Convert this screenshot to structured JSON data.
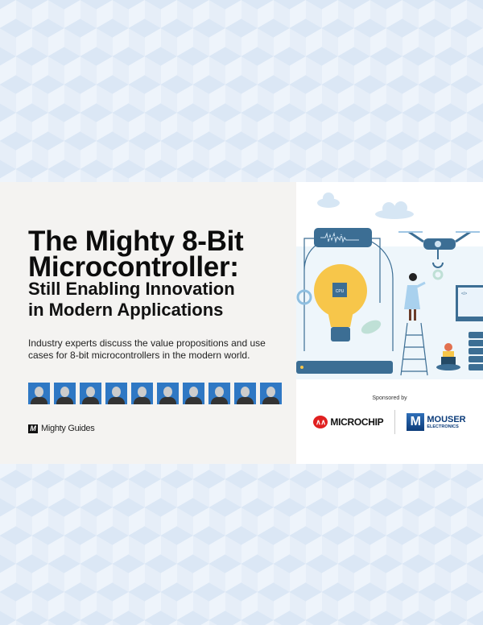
{
  "cover": {
    "title": "The Mighty 8-Bit Microcontroller:",
    "title_line1": "The Mighty 8-Bit",
    "title_line2": "Microcontroller:",
    "subtitle_line1": "Still Enabling Innovation",
    "subtitle_line2": "in Modern Applications",
    "description": "Industry experts discuss the value propositions and use cases for 8-bit microcontrollers in the modern world.",
    "expert_count": 10,
    "publisher": "Mighty Guides",
    "publisher_mark": "M",
    "sponsored_by": "Sponsored by",
    "sponsors": [
      {
        "name": "MICROCHIP",
        "color": "#e02020"
      },
      {
        "name": "MOUSER",
        "sub": "ELECTRONICS",
        "color": "#0c3c7a"
      }
    ],
    "illustration_cpu_label": "CPU",
    "illustration_code_label": "</>"
  },
  "colors": {
    "panel": "#f4f3f1",
    "photo_bg": "#2f78c4",
    "bulb": "#f7c64a",
    "machine": "#3c6e94"
  }
}
